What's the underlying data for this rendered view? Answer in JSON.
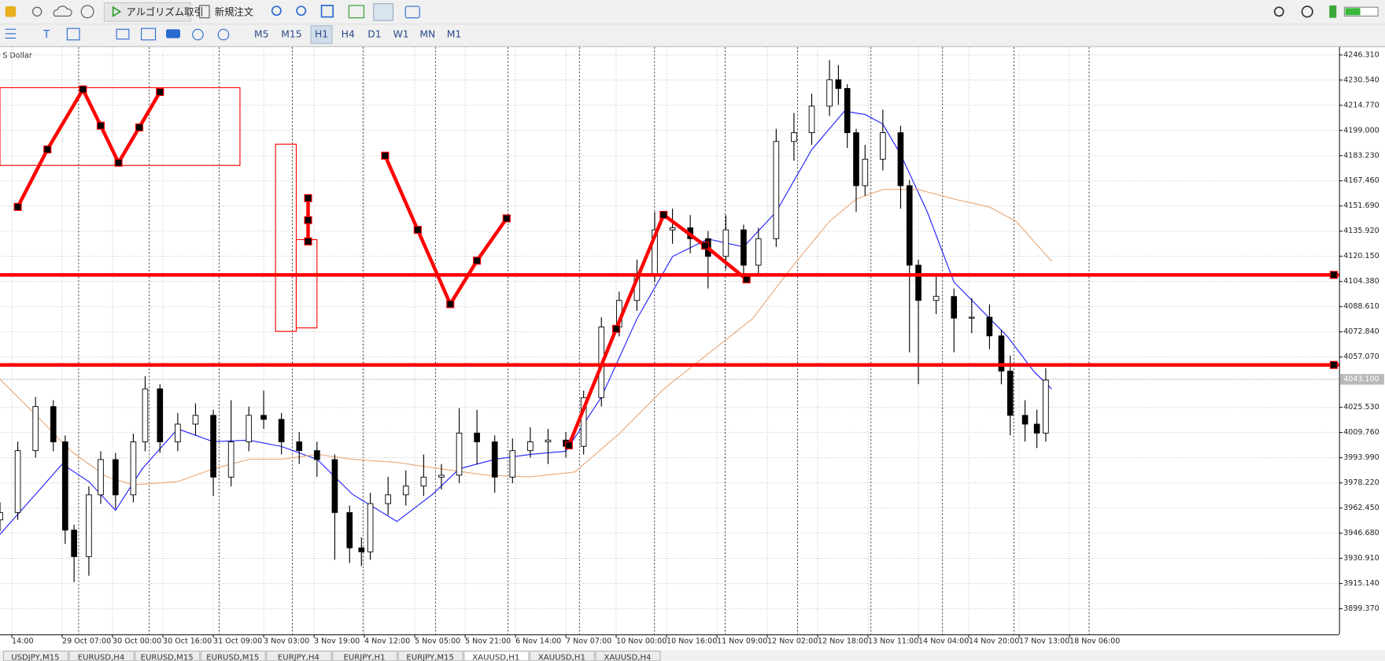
{
  "toolbar": {
    "algo_trading": "アルゴリズム取引",
    "new_order": "新規注文",
    "timeframes": [
      "M5",
      "M15",
      "H1",
      "H4",
      "D1",
      "W1",
      "MN",
      "M1"
    ],
    "active_timeframe": "H1"
  },
  "chart_data": {
    "type": "candlestick",
    "symbol_label": "S Dollar",
    "x": [
      0,
      6,
      12,
      18,
      22,
      25,
      30,
      34,
      39,
      45,
      49,
      54,
      60,
      66,
      72,
      78,
      84,
      89,
      95,
      101,
      107,
      113,
      118,
      122,
      125,
      131,
      137,
      143,
      149,
      155,
      161,
      167,
      173,
      179,
      185,
      191,
      197,
      203,
      209,
      215,
      221,
      227,
      233,
      239,
      245,
      251,
      256,
      262,
      268,
      274,
      280,
      283,
      286,
      289,
      292,
      298,
      304,
      307,
      310,
      316,
      322,
      328,
      334,
      338,
      341,
      346,
      350,
      353
    ],
    "open": [
      3955.0,
      3959.6,
      3998.4,
      4026.0,
      4003.9,
      3948.6,
      3932.0,
      3970.7,
      3992.8,
      3970.7,
      4003.9,
      4037.1,
      4003.9,
      4015.0,
      4020.5,
      3981.8,
      4003.9,
      4020.5,
      4018.0,
      4003.9,
      3998.4,
      3992.8,
      3959.6,
      3937.5,
      3935.0,
      3965.2,
      3970.7,
      3976.2,
      3981.8,
      3983.0,
      4009.4,
      4003.9,
      3981.8,
      3998.4,
      4003.9,
      4005.0,
      4001.1,
      4031.6,
      4075.9,
      4092.5,
      4109.1,
      4136.7,
      4138.0,
      4131.2,
      4120.1,
      4136.7,
      4114.6,
      4131.2,
      4192.1,
      4197.6,
      4214.2,
      4230.8,
      4225.3,
      4197.6,
      4164.4,
      4181.0,
      4197.6,
      4164.4,
      4114.6,
      4092.5,
      4095.0,
      4081.4,
      4082.0,
      4070.3,
      4048.2,
      4020.5,
      4015.0,
      4009.4
    ],
    "high": [
      3966,
      4004,
      4032,
      4030,
      4008,
      3952,
      3976,
      3998,
      3997,
      4009,
      4045,
      4040,
      4022,
      4028,
      4024,
      4030,
      4026,
      4036,
      4022,
      4010,
      4004,
      3996,
      3964,
      3944,
      3972,
      3982,
      3986,
      3996,
      3990,
      4025,
      4024,
      4008,
      4006,
      4013,
      4012,
      4010,
      4036,
      4082,
      4098,
      4118,
      4148,
      4150,
      4146,
      4136,
      4146,
      4140,
      4138,
      4200,
      4210,
      4222,
      4243,
      4240,
      4228,
      4200,
      4190,
      4212,
      4202,
      4168,
      4118,
      4108,
      4100,
      4094,
      4090,
      4074,
      4058,
      4030,
      4024,
      4050
    ],
    "low": [
      3948,
      3955,
      3994,
      3998,
      3940,
      3916,
      3920,
      3965,
      3962,
      3966,
      3998,
      3997,
      3998,
      4008,
      3970,
      3976,
      3998,
      4012,
      3996,
      3990,
      3982,
      3930,
      3928,
      3926,
      3930,
      3958,
      3964,
      3970,
      3974,
      3978,
      3990,
      3972,
      3978,
      3994,
      3990,
      3994,
      3996,
      4026,
      4070,
      4086,
      4104,
      4128,
      4122,
      4100,
      4112,
      4104,
      4108,
      4126,
      4180,
      4190,
      4208,
      4215,
      4188,
      4148,
      4158,
      4174,
      4150,
      4060,
      4040,
      4084,
      4060,
      4072,
      4062,
      4040,
      4008,
      4004,
      4000,
      4004
    ],
    "close": [
      3959.6,
      3998.4,
      4026.0,
      4003.9,
      3948.6,
      3932.0,
      3970.7,
      3992.8,
      3970.7,
      4003.9,
      4037.1,
      4003.9,
      4015.0,
      4020.5,
      3981.8,
      4003.9,
      4020.5,
      4018.0,
      4003.9,
      3998.4,
      3992.8,
      3959.6,
      3937.5,
      3935.0,
      3965.2,
      3970.7,
      3976.2,
      3981.8,
      3983.0,
      4009.4,
      4003.9,
      3981.8,
      3998.4,
      4003.9,
      4005.0,
      4001.1,
      4031.6,
      4075.9,
      4092.5,
      4109.1,
      4136.7,
      4138.0,
      4131.2,
      4120.1,
      4136.7,
      4114.6,
      4131.2,
      4192.1,
      4197.6,
      4214.2,
      4230.8,
      4225.3,
      4197.6,
      4164.4,
      4181.0,
      4197.6,
      4164.4,
      4114.6,
      4092.5,
      4095.0,
      4081.4,
      4082.0,
      4070.3,
      4048.2,
      4020.5,
      4015.0,
      4009.4,
      4042.6
    ],
    "xlim": [
      0,
      452
    ],
    "xticks": [
      {
        "value": 4,
        "label": "14:00"
      },
      {
        "value": 21,
        "label": "29 Oct 07:00"
      },
      {
        "value": 38,
        "label": "30 Oct 00:00"
      },
      {
        "value": 55,
        "label": "30 Oct 16:00"
      },
      {
        "value": 72,
        "label": "31 Oct 09:00"
      },
      {
        "value": 89,
        "label": "3 Nov 03:00"
      },
      {
        "value": 106,
        "label": "3 Nov 19:00"
      },
      {
        "value": 123,
        "label": "4 Nov 12:00"
      },
      {
        "value": 140,
        "label": "5 Nov 05:00"
      },
      {
        "value": 157,
        "label": "5 Nov 21:00"
      },
      {
        "value": 174,
        "label": "6 Nov 14:00"
      },
      {
        "value": 191,
        "label": "7 Nov 07:00"
      },
      {
        "value": 208,
        "label": "10 Nov 00:00"
      },
      {
        "value": 225,
        "label": "10 Nov 16:00"
      },
      {
        "value": 242,
        "label": "11 Nov 09:00"
      },
      {
        "value": 259,
        "label": "12 Nov 02:00"
      },
      {
        "value": 276,
        "label": "12 Nov 18:00"
      },
      {
        "value": 293,
        "label": "13 Nov 11:00"
      },
      {
        "value": 310,
        "label": "14 Nov 04:00"
      },
      {
        "value": 327,
        "label": "14 Nov 20:00"
      },
      {
        "value": 344,
        "label": "17 Nov 13:00"
      },
      {
        "value": 361,
        "label": "18 Nov 06:00"
      }
    ],
    "ylim": [
      3883.3,
      4251.3
    ],
    "yticks": [
      {
        "value": 4246.31,
        "label": "4246.310"
      },
      {
        "value": 4230.54,
        "label": "4230.540"
      },
      {
        "value": 4214.77,
        "label": "4214.770"
      },
      {
        "value": 4199,
        "label": "4199.000"
      },
      {
        "value": 4183.23,
        "label": "4183.230"
      },
      {
        "value": 4167.46,
        "label": "4167.460"
      },
      {
        "value": 4151.69,
        "label": "4151.690"
      },
      {
        "value": 4135.92,
        "label": "4135.920"
      },
      {
        "value": 4120.15,
        "label": "4120.150"
      },
      {
        "value": 4104.38,
        "label": "4104.380"
      },
      {
        "value": 4088.61,
        "label": "4088.610"
      },
      {
        "value": 4072.84,
        "label": "4072.840"
      },
      {
        "value": 4057.07,
        "label": "4057.070"
      },
      {
        "value": 4025.53,
        "label": "4025.530"
      },
      {
        "value": 4009.76,
        "label": "4009.760"
      },
      {
        "value": 3993.99,
        "label": "3993.990"
      },
      {
        "value": 3978.22,
        "label": "3978.220"
      },
      {
        "value": 3962.45,
        "label": "3962.450"
      },
      {
        "value": 3946.68,
        "label": "3946.680"
      },
      {
        "value": 3930.91,
        "label": "3930.910"
      },
      {
        "value": 3915.14,
        "label": "3915.140"
      },
      {
        "value": 3899.37,
        "label": "3899.370"
      }
    ],
    "grid": true,
    "current_price": {
      "value": 4043.1,
      "label": "4043.100"
    },
    "moving_averages": [
      {
        "color": "#1f1fff",
        "x": [
          0,
          12,
          21,
          30,
          39,
          48,
          60,
          72,
          84,
          95,
          107,
          119,
          134,
          146,
          155,
          167,
          179,
          191,
          203,
          215,
          227,
          239,
          251,
          262,
          274,
          285,
          292,
          298,
          304,
          313,
          322,
          331,
          340,
          349,
          355
        ],
        "values": [
          3946,
          3971,
          3990,
          3979,
          3961,
          3987,
          4012,
          4004,
          4005,
          4001,
          3993,
          3971,
          3954,
          3971,
          3987,
          3993,
          3996,
          3998,
          4032,
          4081,
          4120,
          4131,
          4126,
          4148,
          4187,
          4211,
          4209,
          4203,
          4184,
          4148,
          4104,
          4087,
          4070,
          4048,
          4037
        ]
      },
      {
        "color": "#e8a878",
        "x": [
          0,
          12,
          24,
          36,
          45,
          60,
          72,
          84,
          95,
          107,
          119,
          134,
          149,
          164,
          179,
          194,
          209,
          224,
          239,
          254,
          268,
          280,
          289,
          298,
          310,
          322,
          334,
          343,
          355
        ],
        "values": [
          4043,
          4021,
          3998,
          3982,
          3977,
          3979,
          3987,
          3993,
          3993,
          3996,
          3993,
          3991,
          3987,
          3983,
          3982,
          3985,
          4009,
          4037,
          4059,
          4081,
          4115,
          4142,
          4156,
          4162,
          4162,
          4156,
          4151,
          4142,
          4117
        ]
      }
    ],
    "levels": {
      "color": "#ff0000",
      "values": [
        4108.5,
        4052.1
      ]
    },
    "drawings": [
      {
        "x": [
          6,
          16,
          28,
          34,
          40,
          47,
          54
        ],
        "values": [
          4151.1,
          4187.1,
          4224.7,
          4202.0,
          4178.8,
          4200.9,
          4223.1
        ]
      },
      {
        "x": [
          130,
          141,
          152,
          161,
          171
        ],
        "values": [
          4183.2,
          4136.7,
          4090.2,
          4117.4,
          4143.9
        ]
      },
      {
        "x": [
          192,
          208,
          224,
          238,
          252
        ],
        "values": [
          4001.7,
          4074.7,
          4146.1,
          4126.8,
          4105.7
        ]
      },
      {
        "x": [
          104,
          104,
          104
        ],
        "values": [
          4156.6,
          4142.8,
          4129.5
        ]
      }
    ],
    "rectangles": [
      {
        "x": [
          0,
          81
        ],
        "values": [
          4225.8,
          4177.1
        ]
      },
      {
        "x": [
          93,
          100
        ],
        "values": [
          4190.4,
          4073.1
        ]
      },
      {
        "x": [
          100,
          107
        ],
        "values": [
          4130.6,
          4075.3
        ]
      }
    ]
  },
  "tabs": [
    "USDJPY,M15",
    "EURUSD,H4",
    "EURUSD,M15",
    "EURUSD,M15",
    "EURJPY,H4",
    "EURJPY,H1",
    "EURJPY,M15",
    "XAUUSD,H1",
    "XAUUSD,H1",
    "XAUUSD,H4"
  ],
  "active_tab": 7
}
